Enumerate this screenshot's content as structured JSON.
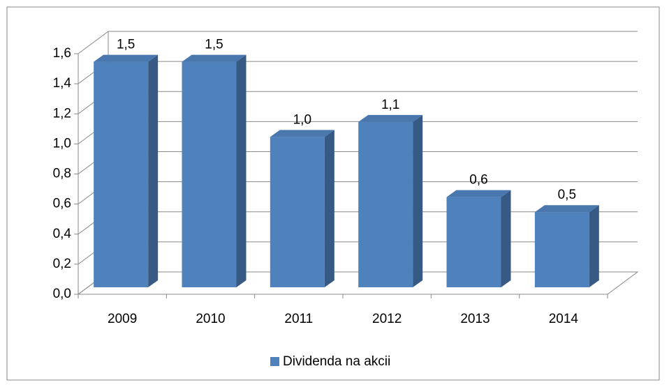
{
  "chart_data": {
    "type": "bar3d",
    "categories": [
      "2009",
      "2010",
      "2011",
      "2012",
      "2013",
      "2014"
    ],
    "series": [
      {
        "name": "Dividenda na akcii",
        "color": "#4f81bd",
        "values": [
          1.5,
          1.5,
          1.0,
          1.1,
          0.6,
          0.5
        ],
        "value_labels": [
          "1,5",
          "1,5",
          "1,0",
          "1,1",
          "0,6",
          "0,5"
        ]
      }
    ],
    "ylim": [
      0,
      1.6
    ],
    "yticks": [
      {
        "value": 0,
        "label": "0,0"
      },
      {
        "value": 0.2,
        "label": "0,2"
      },
      {
        "value": 0.4,
        "label": "0,4"
      },
      {
        "value": 0.6,
        "label": "0,6"
      },
      {
        "value": 0.8,
        "label": "0,8"
      },
      {
        "value": 1.0,
        "label": "1,0"
      },
      {
        "value": 1.2,
        "label": "1,2"
      },
      {
        "value": 1.4,
        "label": "1,4"
      },
      {
        "value": 1.6,
        "label": "1,6"
      }
    ],
    "grid": true,
    "legend": "bottom"
  }
}
